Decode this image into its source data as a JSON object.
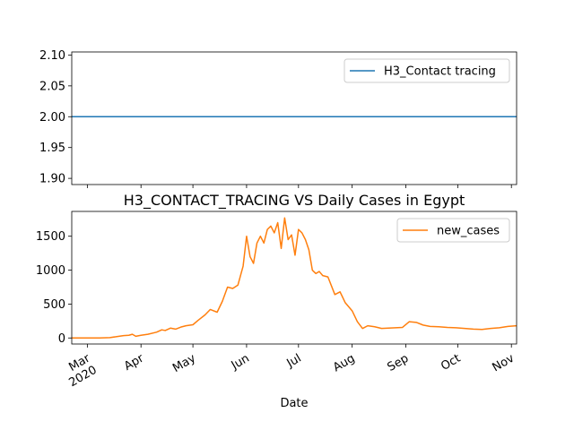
{
  "chart_data": [
    {
      "type": "line",
      "title": "",
      "xlabel": "",
      "ylabel": "",
      "ylim": [
        1.89,
        2.105
      ],
      "yticks": [
        1.9,
        1.95,
        2.0,
        2.05,
        2.1
      ],
      "ytick_labels": [
        "1.90",
        "1.95",
        "2.00",
        "2.05",
        "2.10"
      ],
      "xlim": [
        "2020-02-21",
        "2020-11-04"
      ],
      "legend": "upper-right",
      "grid": false,
      "series": [
        {
          "name": "H3_Contact tracing",
          "color": "#1f77b4",
          "x": [
            "2020-02-21",
            "2020-11-04"
          ],
          "values": [
            2.0,
            2.0
          ]
        }
      ]
    },
    {
      "type": "line",
      "title": "H3_CONTACT_TRACING VS Daily Cases in Egypt",
      "xlabel": "Date",
      "ylabel": "",
      "ylim": [
        -89,
        1866
      ],
      "yticks": [
        0,
        500,
        1000,
        1500
      ],
      "ytick_labels": [
        "0",
        "500",
        "1000",
        "1500"
      ],
      "xlim": [
        "2020-02-21",
        "2020-11-04"
      ],
      "xticks": [
        "2020-03-01",
        "2020-04-01",
        "2020-05-01",
        "2020-06-01",
        "2020-07-01",
        "2020-08-01",
        "2020-09-01",
        "2020-10-01",
        "2020-11-01"
      ],
      "xtick_labels": [
        "Mar\n2020",
        "Apr",
        "May",
        "Jun",
        "Jul",
        "Aug",
        "Sep",
        "Oct",
        "Nov"
      ],
      "legend": "upper-right",
      "grid": false,
      "series": [
        {
          "name": "new_cases",
          "color": "#ff7f0e",
          "x": [
            "2020-02-21",
            "2020-03-01",
            "2020-03-08",
            "2020-03-14",
            "2020-03-18",
            "2020-03-22",
            "2020-03-25",
            "2020-03-27",
            "2020-03-29",
            "2020-04-01",
            "2020-04-05",
            "2020-04-10",
            "2020-04-13",
            "2020-04-15",
            "2020-04-18",
            "2020-04-21",
            "2020-04-24",
            "2020-04-27",
            "2020-05-01",
            "2020-05-04",
            "2020-05-08",
            "2020-05-11",
            "2020-05-15",
            "2020-05-18",
            "2020-05-21",
            "2020-05-24",
            "2020-05-27",
            "2020-05-30",
            "2020-06-01",
            "2020-06-03",
            "2020-06-05",
            "2020-06-07",
            "2020-06-09",
            "2020-06-11",
            "2020-06-13",
            "2020-06-15",
            "2020-06-17",
            "2020-06-19",
            "2020-06-21",
            "2020-06-23",
            "2020-06-25",
            "2020-06-27",
            "2020-06-29",
            "2020-07-01",
            "2020-07-03",
            "2020-07-05",
            "2020-07-07",
            "2020-07-09",
            "2020-07-11",
            "2020-07-13",
            "2020-07-15",
            "2020-07-18",
            "2020-07-22",
            "2020-07-25",
            "2020-07-28",
            "2020-08-01",
            "2020-08-04",
            "2020-08-07",
            "2020-08-10",
            "2020-08-14",
            "2020-08-18",
            "2020-08-22",
            "2020-08-26",
            "2020-08-30",
            "2020-09-03",
            "2020-09-07",
            "2020-09-11",
            "2020-09-15",
            "2020-09-20",
            "2020-09-25",
            "2020-09-30",
            "2020-10-05",
            "2020-10-10",
            "2020-10-15",
            "2020-10-20",
            "2020-10-25",
            "2020-10-30",
            "2020-11-04"
          ],
          "values": [
            0,
            0,
            1,
            5,
            20,
            35,
            40,
            55,
            25,
            40,
            55,
            85,
            120,
            110,
            145,
            130,
            160,
            180,
            195,
            260,
            340,
            420,
            380,
            540,
            750,
            730,
            780,
            1060,
            1500,
            1200,
            1100,
            1400,
            1500,
            1400,
            1600,
            1650,
            1550,
            1700,
            1320,
            1770,
            1450,
            1520,
            1220,
            1600,
            1550,
            1450,
            1300,
            1000,
            950,
            980,
            920,
            900,
            640,
            680,
            520,
            400,
            240,
            140,
            180,
            165,
            140,
            145,
            150,
            155,
            240,
            230,
            190,
            170,
            165,
            155,
            150,
            140,
            130,
            125,
            140,
            150,
            170,
            180
          ]
        }
      ]
    }
  ]
}
